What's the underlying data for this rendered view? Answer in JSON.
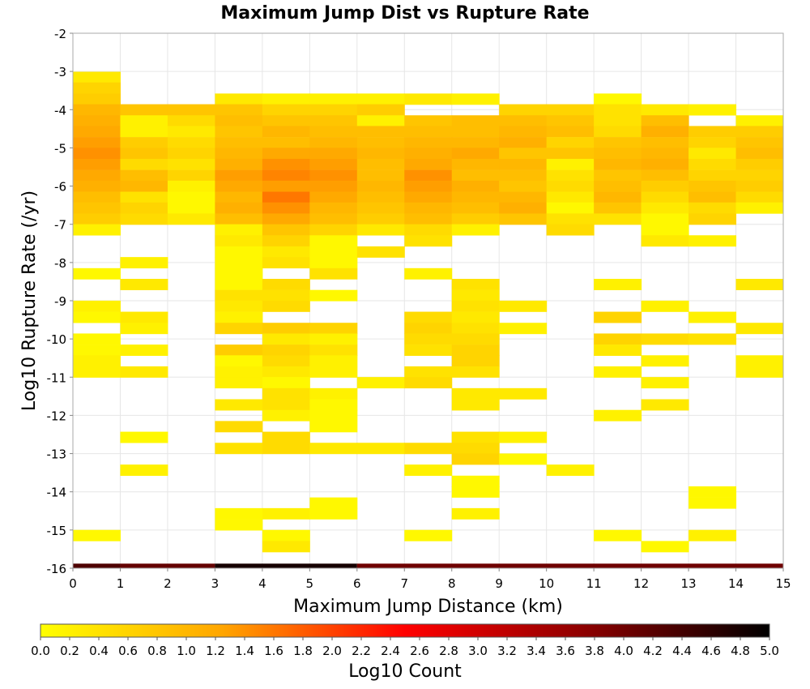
{
  "chart_data": {
    "type": "heatmap",
    "title": "Maximum Jump Dist vs Rupture Rate",
    "xlabel": "Maximum Jump Distance (km)",
    "ylabel": "Log10 Rupture Rate (/yr)",
    "xlim": [
      0,
      15
    ],
    "ylim": [
      -16,
      -2
    ],
    "x_ticks": [
      "0",
      "1",
      "2",
      "3",
      "4",
      "5",
      "6",
      "7",
      "8",
      "9",
      "10",
      "11",
      "12",
      "13",
      "14",
      "15"
    ],
    "y_ticks": [
      "-2",
      "-3",
      "-4",
      "-5",
      "-6",
      "-7",
      "-8",
      "-9",
      "-10",
      "-11",
      "-12",
      "-13",
      "-14",
      "-15",
      "-16"
    ],
    "x_bin_width": 1,
    "y_bin_height": 0.285,
    "colorbar": {
      "label": "Log10 Count",
      "range": [
        0,
        5
      ],
      "ticks": [
        "0.0",
        "0.2",
        "0.4",
        "0.6",
        "0.8",
        "1.0",
        "1.2",
        "1.4",
        "1.6",
        "1.8",
        "2.0",
        "2.2",
        "2.4",
        "2.6",
        "2.8",
        "3.0",
        "3.2",
        "3.4",
        "3.6",
        "3.8",
        "4.0",
        "4.2",
        "4.4",
        "4.6",
        "4.8",
        "5.0"
      ],
      "colors": [
        "#ffff00",
        "#ffa500",
        "#ff0000",
        "#8b0000",
        "#000000"
      ]
    },
    "bottom_strip": [
      {
        "x": [
          0,
          1
        ],
        "value": 4.3
      },
      {
        "x": [
          1,
          3
        ],
        "value": 4.1
      },
      {
        "x": [
          3,
          6
        ],
        "value": 4.8
      },
      {
        "x": [
          6,
          15
        ],
        "value": 4.0
      }
    ],
    "cells": [
      [
        0,
        -3.15,
        0.3
      ],
      [
        0,
        -3.43,
        0.6
      ],
      [
        0,
        -3.72,
        0.7
      ],
      [
        0,
        -4.0,
        1.0
      ],
      [
        0,
        -4.29,
        1.1
      ],
      [
        0,
        -4.57,
        1.2
      ],
      [
        0,
        -4.86,
        1.3
      ],
      [
        0,
        -5.14,
        1.4
      ],
      [
        0,
        -5.43,
        1.3
      ],
      [
        0,
        -5.72,
        1.2
      ],
      [
        0,
        -6.0,
        1.1
      ],
      [
        0,
        -6.29,
        0.9
      ],
      [
        0,
        -6.57,
        0.8
      ],
      [
        0,
        -6.86,
        0.7
      ],
      [
        0,
        -7.14,
        0.2
      ],
      [
        0,
        -8.29,
        0.1
      ],
      [
        0,
        -9.14,
        0.2
      ],
      [
        0,
        -9.43,
        0.1
      ],
      [
        0,
        -10.0,
        0.1
      ],
      [
        0,
        -10.29,
        0.1
      ],
      [
        0,
        -10.57,
        0.2
      ],
      [
        0,
        -10.86,
        0.2
      ],
      [
        0,
        -15.14,
        0.1
      ],
      [
        1,
        -4.0,
        0.8
      ],
      [
        1,
        -4.29,
        0.2
      ],
      [
        1,
        -4.57,
        0.2
      ],
      [
        1,
        -4.86,
        0.7
      ],
      [
        1,
        -5.14,
        0.8
      ],
      [
        1,
        -5.43,
        0.5
      ],
      [
        1,
        -5.72,
        0.9
      ],
      [
        1,
        -6.0,
        1.0
      ],
      [
        1,
        -6.29,
        0.4
      ],
      [
        1,
        -6.57,
        0.6
      ],
      [
        1,
        -6.86,
        0.5
      ],
      [
        1,
        -8.0,
        0.2
      ],
      [
        1,
        -8.57,
        0.3
      ],
      [
        1,
        -9.43,
        0.3
      ],
      [
        1,
        -9.72,
        0.2
      ],
      [
        1,
        -10.29,
        0.2
      ],
      [
        1,
        -10.86,
        0.3
      ],
      [
        1,
        -12.57,
        0.1
      ],
      [
        1,
        -13.43,
        0.2
      ],
      [
        2,
        -4.0,
        0.8
      ],
      [
        2,
        -4.29,
        0.5
      ],
      [
        2,
        -4.57,
        0.3
      ],
      [
        2,
        -4.86,
        0.5
      ],
      [
        2,
        -5.14,
        0.6
      ],
      [
        2,
        -5.43,
        0.4
      ],
      [
        2,
        -5.72,
        0.6
      ],
      [
        2,
        -6.0,
        0.2
      ],
      [
        2,
        -6.29,
        0.1
      ],
      [
        2,
        -6.57,
        0.1
      ],
      [
        2,
        -6.86,
        0.3
      ],
      [
        3,
        -3.72,
        0.3
      ],
      [
        3,
        -4.0,
        0.8
      ],
      [
        3,
        -4.29,
        0.9
      ],
      [
        3,
        -4.57,
        0.8
      ],
      [
        3,
        -4.86,
        0.9
      ],
      [
        3,
        -5.14,
        1.0
      ],
      [
        3,
        -5.43,
        1.1
      ],
      [
        3,
        -5.72,
        1.3
      ],
      [
        3,
        -6.0,
        1.2
      ],
      [
        3,
        -6.29,
        1.0
      ],
      [
        3,
        -6.57,
        1.1
      ],
      [
        3,
        -6.86,
        0.9
      ],
      [
        3,
        -7.14,
        0.2
      ],
      [
        3,
        -7.43,
        0.3
      ],
      [
        3,
        -7.72,
        0.1
      ],
      [
        3,
        -8.0,
        0.1
      ],
      [
        3,
        -8.29,
        0.1
      ],
      [
        3,
        -8.57,
        0.1
      ],
      [
        3,
        -8.86,
        0.4
      ],
      [
        3,
        -9.14,
        0.3
      ],
      [
        3,
        -9.43,
        0.2
      ],
      [
        3,
        -9.72,
        0.6
      ],
      [
        3,
        -10.29,
        0.7
      ],
      [
        3,
        -10.57,
        0.1
      ],
      [
        3,
        -10.86,
        0.2
      ],
      [
        3,
        -11.14,
        0.2
      ],
      [
        3,
        -11.72,
        0.3
      ],
      [
        3,
        -12.29,
        0.5
      ],
      [
        3,
        -12.86,
        0.4
      ],
      [
        3,
        -14.57,
        0.1
      ],
      [
        3,
        -14.86,
        0.1
      ],
      [
        4,
        -3.72,
        0.2
      ],
      [
        4,
        -4.0,
        0.6
      ],
      [
        4,
        -4.29,
        0.8
      ],
      [
        4,
        -4.57,
        1.0
      ],
      [
        4,
        -4.86,
        0.9
      ],
      [
        4,
        -5.14,
        1.2
      ],
      [
        4,
        -5.43,
        1.4
      ],
      [
        4,
        -5.72,
        1.5
      ],
      [
        4,
        -6.0,
        1.3
      ],
      [
        4,
        -6.29,
        1.6
      ],
      [
        4,
        -6.57,
        1.4
      ],
      [
        4,
        -6.86,
        1.2
      ],
      [
        4,
        -7.14,
        0.8
      ],
      [
        4,
        -7.43,
        0.6
      ],
      [
        4,
        -7.72,
        0.3
      ],
      [
        4,
        -8.0,
        0.4
      ],
      [
        4,
        -8.57,
        0.5
      ],
      [
        4,
        -8.86,
        0.4
      ],
      [
        4,
        -9.14,
        0.5
      ],
      [
        4,
        -9.72,
        0.7
      ],
      [
        4,
        -10.0,
        0.3
      ],
      [
        4,
        -10.29,
        0.6
      ],
      [
        4,
        -10.57,
        0.5
      ],
      [
        4,
        -10.86,
        0.3
      ],
      [
        4,
        -11.14,
        0.1
      ],
      [
        4,
        -11.43,
        0.4
      ],
      [
        4,
        -11.72,
        0.4
      ],
      [
        4,
        -12.0,
        0.2
      ],
      [
        4,
        -12.57,
        0.5
      ],
      [
        4,
        -12.86,
        0.5
      ],
      [
        4,
        -14.57,
        0.2
      ],
      [
        4,
        -15.14,
        0.1
      ],
      [
        4,
        -15.43,
        0.3
      ],
      [
        5,
        -3.72,
        0.2
      ],
      [
        5,
        -4.0,
        0.6
      ],
      [
        5,
        -4.29,
        0.8
      ],
      [
        5,
        -4.57,
        0.9
      ],
      [
        5,
        -4.86,
        1.0
      ],
      [
        5,
        -5.14,
        1.2
      ],
      [
        5,
        -5.43,
        1.3
      ],
      [
        5,
        -5.72,
        1.4
      ],
      [
        5,
        -6.0,
        1.3
      ],
      [
        5,
        -6.29,
        1.2
      ],
      [
        5,
        -6.57,
        1.0
      ],
      [
        5,
        -6.86,
        0.9
      ],
      [
        5,
        -7.14,
        0.6
      ],
      [
        5,
        -7.43,
        0.1
      ],
      [
        5,
        -7.72,
        0.1
      ],
      [
        5,
        -8.0,
        0.1
      ],
      [
        5,
        -8.29,
        0.4
      ],
      [
        5,
        -8.86,
        0.1
      ],
      [
        5,
        -9.72,
        0.6
      ],
      [
        5,
        -10.0,
        0.2
      ],
      [
        5,
        -10.29,
        0.4
      ],
      [
        5,
        -10.57,
        0.2
      ],
      [
        5,
        -10.86,
        0.2
      ],
      [
        5,
        -11.43,
        0.2
      ],
      [
        5,
        -11.72,
        0.1
      ],
      [
        5,
        -12.0,
        0.1
      ],
      [
        5,
        -12.29,
        0.1
      ],
      [
        5,
        -12.86,
        0.3
      ],
      [
        5,
        -14.29,
        0.1
      ],
      [
        5,
        -14.57,
        0.1
      ],
      [
        6,
        -3.72,
        0.2
      ],
      [
        6,
        -4.0,
        0.7
      ],
      [
        6,
        -4.29,
        0.2
      ],
      [
        6,
        -4.57,
        0.9
      ],
      [
        6,
        -4.86,
        0.9
      ],
      [
        6,
        -5.14,
        1.0
      ],
      [
        6,
        -5.43,
        0.9
      ],
      [
        6,
        -5.72,
        0.9
      ],
      [
        6,
        -6.0,
        1.0
      ],
      [
        6,
        -6.29,
        0.9
      ],
      [
        6,
        -6.57,
        0.8
      ],
      [
        6,
        -6.86,
        0.7
      ],
      [
        6,
        -7.14,
        0.3
      ],
      [
        6,
        -7.72,
        0.4
      ],
      [
        6,
        -11.14,
        0.2
      ],
      [
        6,
        -12.86,
        0.3
      ],
      [
        7,
        -3.72,
        0.3
      ],
      [
        7,
        -4.29,
        0.8
      ],
      [
        7,
        -4.57,
        0.9
      ],
      [
        7,
        -4.86,
        1.0
      ],
      [
        7,
        -5.14,
        1.1
      ],
      [
        7,
        -5.43,
        1.2
      ],
      [
        7,
        -5.72,
        1.4
      ],
      [
        7,
        -6.0,
        1.3
      ],
      [
        7,
        -6.29,
        1.2
      ],
      [
        7,
        -6.57,
        1.0
      ],
      [
        7,
        -6.86,
        0.9
      ],
      [
        7,
        -7.14,
        0.5
      ],
      [
        7,
        -7.43,
        0.4
      ],
      [
        7,
        -8.29,
        0.2
      ],
      [
        7,
        -9.43,
        0.5
      ],
      [
        7,
        -9.72,
        0.6
      ],
      [
        7,
        -10.0,
        0.5
      ],
      [
        7,
        -10.29,
        0.4
      ],
      [
        7,
        -10.86,
        0.4
      ],
      [
        7,
        -11.14,
        0.5
      ],
      [
        7,
        -12.86,
        0.5
      ],
      [
        7,
        -13.43,
        0.2
      ],
      [
        7,
        -15.14,
        0.1
      ],
      [
        8,
        -3.72,
        0.2
      ],
      [
        8,
        -4.29,
        0.9
      ],
      [
        8,
        -4.57,
        0.9
      ],
      [
        8,
        -4.86,
        1.0
      ],
      [
        8,
        -5.14,
        1.2
      ],
      [
        8,
        -5.43,
        1.0
      ],
      [
        8,
        -5.72,
        0.9
      ],
      [
        8,
        -6.0,
        1.1
      ],
      [
        8,
        -6.29,
        1.0
      ],
      [
        8,
        -6.57,
        0.9
      ],
      [
        8,
        -6.86,
        0.7
      ],
      [
        8,
        -7.14,
        0.2
      ],
      [
        8,
        -8.57,
        0.4
      ],
      [
        8,
        -8.86,
        0.3
      ],
      [
        8,
        -9.14,
        0.4
      ],
      [
        8,
        -9.43,
        0.3
      ],
      [
        8,
        -9.72,
        0.4
      ],
      [
        8,
        -10.0,
        0.5
      ],
      [
        8,
        -10.29,
        0.6
      ],
      [
        8,
        -10.57,
        0.6
      ],
      [
        8,
        -10.86,
        0.4
      ],
      [
        8,
        -11.43,
        0.3
      ],
      [
        8,
        -11.72,
        0.3
      ],
      [
        8,
        -12.57,
        0.4
      ],
      [
        8,
        -12.86,
        0.5
      ],
      [
        8,
        -13.14,
        0.6
      ],
      [
        8,
        -13.72,
        0.1
      ],
      [
        8,
        -14.0,
        0.1
      ],
      [
        8,
        -14.57,
        0.2
      ],
      [
        9,
        -4.0,
        0.6
      ],
      [
        9,
        -4.29,
        0.9
      ],
      [
        9,
        -4.57,
        1.0
      ],
      [
        9,
        -4.86,
        1.1
      ],
      [
        9,
        -5.14,
        0.8
      ],
      [
        9,
        -5.43,
        1.0
      ],
      [
        9,
        -5.72,
        0.9
      ],
      [
        9,
        -6.0,
        0.8
      ],
      [
        9,
        -6.29,
        1.0
      ],
      [
        9,
        -6.57,
        1.1
      ],
      [
        9,
        -6.86,
        0.8
      ],
      [
        9,
        -9.14,
        0.3
      ],
      [
        9,
        -9.72,
        0.2
      ],
      [
        9,
        -11.43,
        0.3
      ],
      [
        9,
        -12.57,
        0.2
      ],
      [
        9,
        -13.14,
        0.1
      ],
      [
        10,
        -4.0,
        0.6
      ],
      [
        10,
        -4.29,
        0.8
      ],
      [
        10,
        -4.57,
        0.9
      ],
      [
        10,
        -4.86,
        0.6
      ],
      [
        10,
        -5.14,
        0.8
      ],
      [
        10,
        -5.43,
        0.2
      ],
      [
        10,
        -5.72,
        0.4
      ],
      [
        10,
        -6.0,
        0.5
      ],
      [
        10,
        -6.29,
        0.3
      ],
      [
        10,
        -6.57,
        0.1
      ],
      [
        10,
        -6.86,
        0.4
      ],
      [
        10,
        -7.14,
        0.5
      ],
      [
        10,
        -13.43,
        0.2
      ],
      [
        11,
        -3.72,
        0.1
      ],
      [
        11,
        -4.0,
        0.4
      ],
      [
        11,
        -4.29,
        0.4
      ],
      [
        11,
        -4.57,
        0.5
      ],
      [
        11,
        -4.86,
        0.8
      ],
      [
        11,
        -5.14,
        0.9
      ],
      [
        11,
        -5.43,
        1.0
      ],
      [
        11,
        -5.72,
        0.8
      ],
      [
        11,
        -6.0,
        0.9
      ],
      [
        11,
        -6.29,
        1.0
      ],
      [
        11,
        -6.57,
        0.8
      ],
      [
        11,
        -6.86,
        0.4
      ],
      [
        11,
        -8.57,
        0.2
      ],
      [
        11,
        -9.43,
        0.6
      ],
      [
        11,
        -10.0,
        0.6
      ],
      [
        11,
        -10.29,
        0.3
      ],
      [
        11,
        -10.86,
        0.2
      ],
      [
        11,
        -12.0,
        0.2
      ],
      [
        11,
        -15.14,
        0.1
      ],
      [
        12,
        -4.0,
        0.3
      ],
      [
        12,
        -4.29,
        0.9
      ],
      [
        12,
        -4.57,
        1.1
      ],
      [
        12,
        -4.86,
        0.9
      ],
      [
        12,
        -5.14,
        1.0
      ],
      [
        12,
        -5.43,
        1.1
      ],
      [
        12,
        -5.72,
        0.9
      ],
      [
        12,
        -6.0,
        0.7
      ],
      [
        12,
        -6.29,
        0.5
      ],
      [
        12,
        -6.57,
        0.3
      ],
      [
        12,
        -6.86,
        0.1
      ],
      [
        12,
        -7.14,
        0.1
      ],
      [
        12,
        -7.43,
        0.3
      ],
      [
        12,
        -9.14,
        0.2
      ],
      [
        12,
        -10.0,
        0.5
      ],
      [
        12,
        -10.57,
        0.2
      ],
      [
        12,
        -11.14,
        0.2
      ],
      [
        12,
        -11.72,
        0.3
      ],
      [
        12,
        -15.43,
        0.1
      ],
      [
        13,
        -4.0,
        0.2
      ],
      [
        13,
        -4.57,
        0.7
      ],
      [
        13,
        -4.86,
        0.6
      ],
      [
        13,
        -5.14,
        0.3
      ],
      [
        13,
        -5.43,
        0.5
      ],
      [
        13,
        -5.72,
        0.6
      ],
      [
        13,
        -6.0,
        0.8
      ],
      [
        13,
        -6.29,
        0.9
      ],
      [
        13,
        -6.57,
        0.5
      ],
      [
        13,
        -6.86,
        0.6
      ],
      [
        13,
        -7.43,
        0.2
      ],
      [
        13,
        -9.43,
        0.2
      ],
      [
        13,
        -10.0,
        0.4
      ],
      [
        13,
        -14.0,
        0.1
      ],
      [
        13,
        -14.29,
        0.1
      ],
      [
        13,
        -15.14,
        0.2
      ],
      [
        14,
        -4.29,
        0.2
      ],
      [
        14,
        -4.57,
        0.7
      ],
      [
        14,
        -4.86,
        0.8
      ],
      [
        14,
        -5.14,
        0.9
      ],
      [
        14,
        -5.43,
        0.7
      ],
      [
        14,
        -5.72,
        0.6
      ],
      [
        14,
        -6.0,
        0.7
      ],
      [
        14,
        -6.29,
        0.5
      ],
      [
        14,
        -6.57,
        0.2
      ],
      [
        14,
        -8.57,
        0.3
      ],
      [
        14,
        -9.72,
        0.3
      ],
      [
        14,
        -10.57,
        0.2
      ],
      [
        14,
        -10.86,
        0.2
      ]
    ]
  }
}
